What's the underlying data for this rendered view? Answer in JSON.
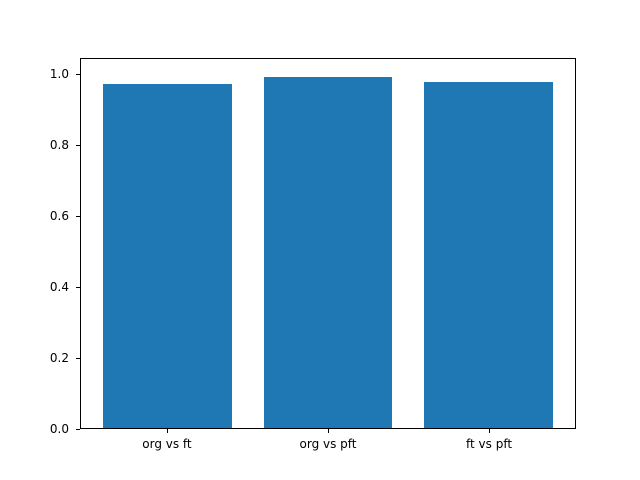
{
  "chart_data": {
    "type": "bar",
    "title": "",
    "xlabel": "",
    "ylabel": "",
    "categories": [
      "org vs ft",
      "org vs pft",
      "ft vs pft"
    ],
    "values": [
      0.975,
      0.995,
      0.98
    ],
    "bar_color": "#1f77b4",
    "grid": false,
    "legend": null,
    "ylim": [
      0,
      1.045
    ],
    "xlim": [
      -0.54,
      2.54
    ],
    "bar_width": 0.8,
    "yticks": [
      {
        "value": 0.0,
        "label": "0.0"
      },
      {
        "value": 0.2,
        "label": "0.2"
      },
      {
        "value": 0.4,
        "label": "0.4"
      },
      {
        "value": 0.6,
        "label": "0.6"
      },
      {
        "value": 0.8,
        "label": "0.8"
      },
      {
        "value": 1.0,
        "label": "1.0"
      }
    ]
  },
  "figure": {
    "background": "#ffffff"
  }
}
